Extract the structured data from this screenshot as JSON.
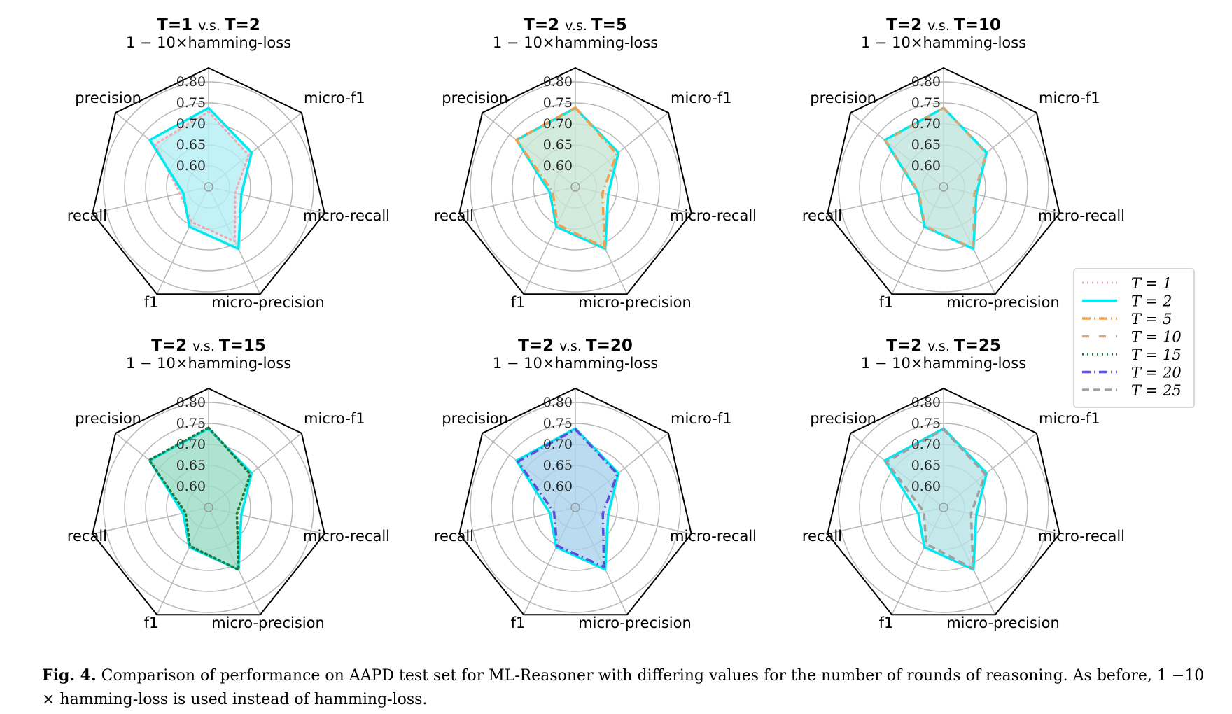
{
  "chart_data": {
    "type": "radar",
    "axes": [
      "1 − 10×hamming-loss",
      "micro-f1",
      "micro-recall",
      "micro-precision",
      "f1",
      "recall",
      "precision"
    ],
    "rings": [
      0.6,
      0.65,
      0.7,
      0.75,
      0.8
    ],
    "r_range": [
      0.55,
      0.8
    ],
    "ring_labels": [
      "0.60",
      "0.65",
      "0.70",
      "0.75",
      "0.80"
    ],
    "series_styles": {
      "T = 1": {
        "color": "#f4a6b7",
        "dash": "dotted",
        "width": 3
      },
      "T = 2": {
        "color": "#00e8f0",
        "dash": "solid",
        "width": 3.5
      },
      "T = 5": {
        "color": "#f0a050",
        "dash": "dashdot",
        "width": 3.5
      },
      "T = 10": {
        "color": "#d4a878",
        "dash": "loosedash",
        "width": 3.5
      },
      "T = 15": {
        "color": "#1f7a3c",
        "dash": "dotted",
        "width": 3.5
      },
      "T = 20": {
        "color": "#5a4fd8",
        "dash": "dashdot",
        "width": 3.5
      },
      "T = 25": {
        "color": "#a0a0a0",
        "dash": "dashed",
        "width": 3.5
      }
    },
    "legend": {
      "placement": "right",
      "entries": [
        "T = 1",
        "T = 2",
        "T = 5",
        "T = 10",
        "T = 15",
        "T = 20",
        "T = 25"
      ]
    },
    "panels": [
      {
        "title_left": "T=1",
        "title_vs": "v.s.",
        "title_right": "T=2",
        "fill": "#b2eef4",
        "series": [
          {
            "name": "T = 1",
            "values": [
              0.729,
              0.672,
              0.615,
              0.694,
              0.643,
              0.62,
              0.713
            ]
          },
          {
            "name": "T = 2",
            "values": [
              0.738,
              0.681,
              0.63,
              0.714,
              0.655,
              0.612,
              0.729
            ]
          }
        ]
      },
      {
        "title_left": "T=2",
        "title_vs": "v.s.",
        "title_right": "T=5",
        "fill": "#c8e6d4",
        "series": [
          {
            "name": "T = 2",
            "values": [
              0.738,
              0.681,
              0.63,
              0.714,
              0.655,
              0.612,
              0.729
            ]
          },
          {
            "name": "T = 5",
            "values": [
              0.739,
              0.676,
              0.616,
              0.711,
              0.649,
              0.605,
              0.73
            ]
          }
        ]
      },
      {
        "title_left": "T=2",
        "title_vs": "v.s.",
        "title_right": "T=10",
        "fill": "#bfe4dc",
        "series": [
          {
            "name": "T = 2",
            "values": [
              0.738,
              0.681,
              0.63,
              0.714,
              0.655,
              0.612,
              0.729
            ]
          },
          {
            "name": "T = 10",
            "values": [
              0.738,
              0.68,
              0.625,
              0.713,
              0.653,
              0.61,
              0.727
            ]
          }
        ]
      },
      {
        "title_left": "T=2",
        "title_vs": "v.s.",
        "title_right": "T=15",
        "fill": "#99dcc4",
        "series": [
          {
            "name": "T = 2",
            "values": [
              0.738,
              0.681,
              0.63,
              0.714,
              0.655,
              0.612,
              0.729
            ]
          },
          {
            "name": "T = 15",
            "values": [
              0.74,
              0.677,
              0.619,
              0.715,
              0.652,
              0.606,
              0.731
            ]
          }
        ]
      },
      {
        "title_left": "T=2",
        "title_vs": "v.s.",
        "title_right": "T=20",
        "fill": "#aad2ec",
        "series": [
          {
            "name": "T = 2",
            "values": [
              0.738,
              0.681,
              0.63,
              0.714,
              0.655,
              0.612,
              0.729
            ]
          },
          {
            "name": "T = 20",
            "values": [
              0.736,
              0.678,
              0.617,
              0.707,
              0.651,
              0.602,
              0.725
            ]
          }
        ]
      },
      {
        "title_left": "T=2",
        "title_vs": "v.s.",
        "title_right": "T=25",
        "fill": "#b6e4e6",
        "series": [
          {
            "name": "T = 2",
            "values": [
              0.738,
              0.681,
              0.63,
              0.714,
              0.655,
              0.612,
              0.729
            ]
          },
          {
            "name": "T = 25",
            "values": [
              0.736,
              0.677,
              0.617,
              0.712,
              0.646,
              0.598,
              0.724
            ]
          }
        ]
      }
    ]
  },
  "caption": {
    "label": "Fig. 4.",
    "text": "Comparison of performance on AAPD test set for ML-Reasoner with differing values for the number of rounds of reasoning. As before, 1 −10 × hamming-loss is used instead of hamming-loss."
  }
}
